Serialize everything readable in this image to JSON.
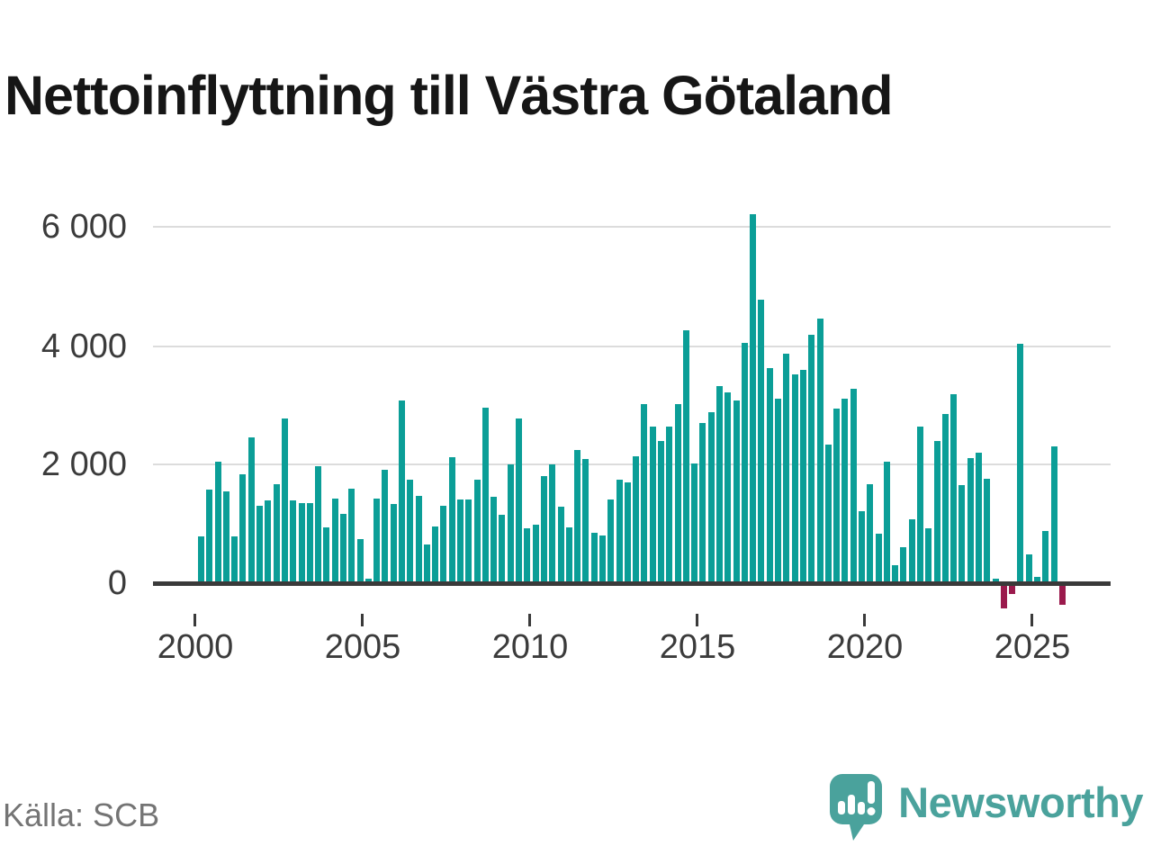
{
  "title": "Nettoinflyttning till Västra Götaland",
  "source": "Källa: SCB",
  "branding": {
    "name": "Newsworthy"
  },
  "colors": {
    "bar_positive": "#0b9e97",
    "bar_negative": "#9b1a4d",
    "axis": "#3a3a3a",
    "gridline": "#dcdcdc",
    "tick_label": "#3b3b3b",
    "source_text": "#747474",
    "brand": "#4aa29c",
    "title_text": "#161616",
    "background": "#ffffff"
  },
  "chart_data": {
    "type": "bar",
    "title": "Nettoinflyttning till Västra Götaland",
    "frequency": "quarterly",
    "x_start": "2000 Q1",
    "x_end": "2025 Q4",
    "values": [
      790,
      1570,
      2050,
      1540,
      790,
      1830,
      2450,
      1310,
      1400,
      1660,
      2770,
      1390,
      1350,
      1350,
      1970,
      940,
      1430,
      1160,
      1590,
      740,
      80,
      1430,
      1910,
      1340,
      3080,
      1740,
      1470,
      650,
      960,
      1310,
      2120,
      1410,
      1410,
      1750,
      2960,
      1460,
      1150,
      2000,
      2770,
      920,
      980,
      1800,
      2000,
      1290,
      940,
      2240,
      2090,
      850,
      800,
      1410,
      1750,
      1700,
      2130,
      3020,
      2640,
      2390,
      2630,
      3020,
      4260,
      2010,
      2700,
      2880,
      3320,
      3220,
      3070,
      4040,
      6220,
      4770,
      3620,
      3110,
      3860,
      3520,
      3590,
      4180,
      4460,
      2330,
      2940,
      3100,
      3270,
      1210,
      1660,
      830,
      2050,
      300,
      610,
      1070,
      2640,
      920,
      2390,
      2850,
      3180,
      1650,
      2100,
      2200,
      1760,
      80,
      -420,
      -180,
      4030,
      480,
      110,
      880,
      2310,
      -370
    ],
    "y_ticks": [
      0,
      2000,
      4000,
      6000
    ],
    "y_tick_labels": [
      "0",
      "2 000",
      "4 000",
      "6 000"
    ],
    "x_tick_labels": [
      "2000",
      "2005",
      "2010",
      "2015",
      "2020",
      "2025"
    ],
    "ylim": [
      -500,
      6350
    ],
    "grid": "horizontal",
    "legend": "none"
  }
}
